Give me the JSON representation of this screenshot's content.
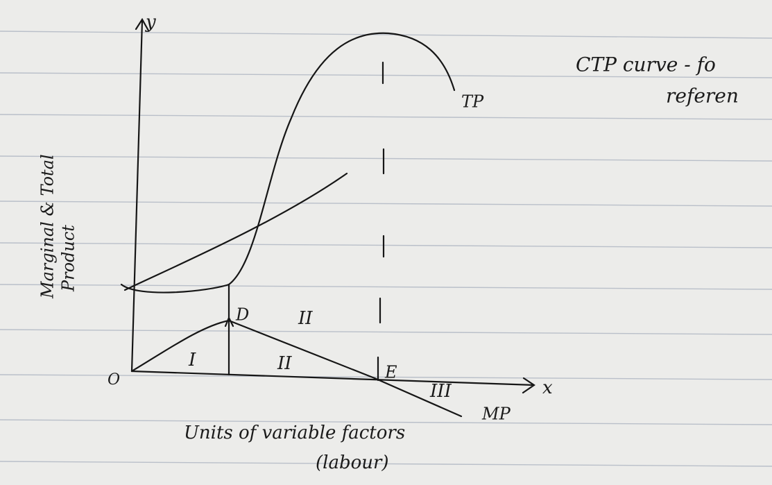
{
  "axes": {
    "y_label": "y",
    "x_label": "x",
    "origin": "O",
    "y_title": [
      "Marginal & Total",
      "Product"
    ],
    "x_title": [
      "Units of variable factors",
      "(labour)"
    ]
  },
  "curves": {
    "tp": "TP",
    "mp": "MP"
  },
  "points": {
    "d": "D",
    "e": "E"
  },
  "stages": [
    "I",
    "II",
    "II",
    "III"
  ],
  "note": [
    "CTP curve - fo",
    "referen"
  ]
}
